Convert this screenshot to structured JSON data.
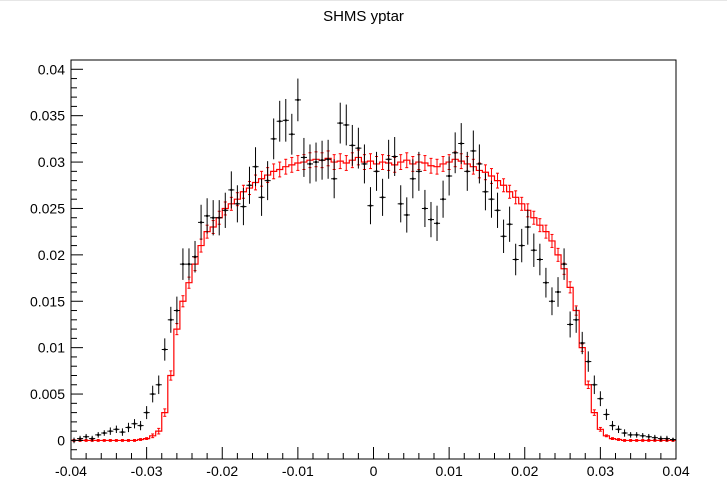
{
  "chart_data": {
    "type": "scatter",
    "title": "SHMS yptar",
    "xlabel": "",
    "ylabel": "",
    "xlim": [
      -0.04,
      0.04
    ],
    "ylim": [
      -0.002,
      0.041
    ],
    "grid": false,
    "legend": "none",
    "x_ticks": [
      "-0.04",
      "-0.03",
      "-0.02",
      "-0.01",
      "0",
      "0.01",
      "0.02",
      "0.03",
      "0.04"
    ],
    "y_ticks": [
      "0",
      "0.005",
      "0.01",
      "0.015",
      "0.02",
      "0.025",
      "0.03",
      "0.035",
      "0.04"
    ],
    "colors": {
      "data": "#000000",
      "simulation": "#ff0000",
      "frame": "#000000"
    },
    "bin_width": 0.0008,
    "series": [
      {
        "style": "points-with-error-bars",
        "color": "#000000",
        "x": [
          -0.0396,
          -0.0388,
          -0.038,
          -0.0372,
          -0.0364,
          -0.0356,
          -0.0348,
          -0.034,
          -0.0332,
          -0.0324,
          -0.0316,
          -0.0308,
          -0.03,
          -0.0292,
          -0.0284,
          -0.0276,
          -0.0268,
          -0.026,
          -0.0252,
          -0.0244,
          -0.0236,
          -0.0228,
          -0.022,
          -0.0212,
          -0.0204,
          -0.0196,
          -0.0188,
          -0.018,
          -0.0172,
          -0.0164,
          -0.0156,
          -0.0148,
          -0.014,
          -0.0132,
          -0.0124,
          -0.0116,
          -0.0108,
          -0.01,
          -0.0092,
          -0.0084,
          -0.0076,
          -0.0068,
          -0.006,
          -0.0052,
          -0.0044,
          -0.0036,
          -0.0028,
          -0.002,
          -0.0012,
          -0.0004,
          0.0004,
          0.0012,
          0.002,
          0.0028,
          0.0036,
          0.0044,
          0.0052,
          0.006,
          0.0068,
          0.0076,
          0.0084,
          0.0092,
          0.01,
          0.0108,
          0.0116,
          0.0124,
          0.0132,
          0.014,
          0.0148,
          0.0156,
          0.0164,
          0.0172,
          0.018,
          0.0188,
          0.0196,
          0.0204,
          0.0212,
          0.022,
          0.0228,
          0.0236,
          0.0244,
          0.0252,
          0.026,
          0.0268,
          0.0276,
          0.0284,
          0.0292,
          0.03,
          0.0308,
          0.0316,
          0.0324,
          0.0332,
          0.034,
          0.0348,
          0.0356,
          0.0364,
          0.0372,
          0.038,
          0.0388,
          0.0396
        ],
        "y": [
          0.0,
          0.0002,
          0.0004,
          0.0002,
          0.0006,
          0.0008,
          0.001,
          0.0012,
          0.0009,
          0.0014,
          0.0018,
          0.0016,
          0.003,
          0.005,
          0.006,
          0.0098,
          0.013,
          0.014,
          0.019,
          0.019,
          0.0198,
          0.0235,
          0.0242,
          0.024,
          0.024,
          0.0248,
          0.027,
          0.0255,
          0.0252,
          0.0275,
          0.0295,
          0.0262,
          0.028,
          0.0325,
          0.0344,
          0.0345,
          0.033,
          0.0367,
          0.0305,
          0.0298,
          0.03,
          0.0302,
          0.0303,
          0.0282,
          0.0342,
          0.034,
          0.0318,
          0.0315,
          0.0298,
          0.0253,
          0.029,
          0.0262,
          0.0303,
          0.0306,
          0.0255,
          0.0243,
          0.0282,
          0.029,
          0.025,
          0.0238,
          0.0234,
          0.026,
          0.0285,
          0.031,
          0.032,
          0.029,
          0.0312,
          0.0298,
          0.0268,
          0.026,
          0.0248,
          0.022,
          0.0233,
          0.0195,
          0.021,
          0.023,
          0.0205,
          0.0195,
          0.017,
          0.015,
          0.016,
          0.019,
          0.0125,
          0.013,
          0.0105,
          0.0085,
          0.006,
          0.0045,
          0.0028,
          0.0016,
          0.0012,
          0.0008,
          0.0006,
          0.0006,
          0.0005,
          0.0004,
          0.0003,
          0.0002,
          0.0002,
          0.0001
        ],
        "err": [
          0.0003,
          0.0003,
          0.0003,
          0.0003,
          0.0003,
          0.0003,
          0.0004,
          0.0004,
          0.0004,
          0.0005,
          0.0005,
          0.0005,
          0.0007,
          0.0009,
          0.001,
          0.0012,
          0.0014,
          0.0015,
          0.0017,
          0.0017,
          0.0017,
          0.0019,
          0.0019,
          0.0019,
          0.0019,
          0.0019,
          0.002,
          0.002,
          0.002,
          0.002,
          0.0021,
          0.002,
          0.0021,
          0.0022,
          0.0022,
          0.0023,
          0.0022,
          0.0023,
          0.0021,
          0.0021,
          0.0021,
          0.0021,
          0.0021,
          0.0021,
          0.0022,
          0.0022,
          0.0022,
          0.0022,
          0.0021,
          0.002,
          0.0021,
          0.002,
          0.0021,
          0.0021,
          0.002,
          0.0019,
          0.0021,
          0.0021,
          0.002,
          0.0019,
          0.0019,
          0.002,
          0.0021,
          0.0022,
          0.0022,
          0.0021,
          0.0022,
          0.0021,
          0.002,
          0.002,
          0.0019,
          0.0018,
          0.0019,
          0.0017,
          0.0018,
          0.0019,
          0.0018,
          0.0017,
          0.0016,
          0.0015,
          0.0016,
          0.0017,
          0.0014,
          0.0014,
          0.0012,
          0.0011,
          0.001,
          0.0008,
          0.0006,
          0.0005,
          0.0004,
          0.0004,
          0.0003,
          0.0003,
          0.0003,
          0.0003,
          0.0003,
          0.0003,
          0.0003,
          0.0002
        ]
      },
      {
        "style": "step-histogram-with-error-bars",
        "color": "#ff0000",
        "x": [
          -0.0396,
          -0.0388,
          -0.038,
          -0.0372,
          -0.0364,
          -0.0356,
          -0.0348,
          -0.034,
          -0.0332,
          -0.0324,
          -0.0316,
          -0.0308,
          -0.03,
          -0.0292,
          -0.0284,
          -0.0276,
          -0.0268,
          -0.026,
          -0.0252,
          -0.0244,
          -0.0236,
          -0.0228,
          -0.022,
          -0.0212,
          -0.0204,
          -0.0196,
          -0.0188,
          -0.018,
          -0.0172,
          -0.0164,
          -0.0156,
          -0.0148,
          -0.014,
          -0.0132,
          -0.0124,
          -0.0116,
          -0.0108,
          -0.01,
          -0.0092,
          -0.0084,
          -0.0076,
          -0.0068,
          -0.006,
          -0.0052,
          -0.0044,
          -0.0036,
          -0.0028,
          -0.002,
          -0.0012,
          -0.0004,
          0.0004,
          0.0012,
          0.002,
          0.0028,
          0.0036,
          0.0044,
          0.0052,
          0.006,
          0.0068,
          0.0076,
          0.0084,
          0.0092,
          0.01,
          0.0108,
          0.0116,
          0.0124,
          0.0132,
          0.014,
          0.0148,
          0.0156,
          0.0164,
          0.0172,
          0.018,
          0.0188,
          0.0196,
          0.0204,
          0.0212,
          0.022,
          0.0228,
          0.0236,
          0.0244,
          0.0252,
          0.026,
          0.0268,
          0.0276,
          0.0284,
          0.0292,
          0.03,
          0.0308,
          0.0316,
          0.0324,
          0.0332,
          0.034,
          0.0348,
          0.0356,
          0.0364,
          0.0372,
          0.038,
          0.0388,
          0.0396
        ],
        "y": [
          0.0,
          0.0,
          0.0,
          0.0,
          0.0,
          0.0,
          0.0,
          0.0,
          0.0,
          0.0,
          0.0,
          0.0001,
          0.0002,
          0.0005,
          0.001,
          0.003,
          0.007,
          0.012,
          0.015,
          0.017,
          0.019,
          0.021,
          0.0225,
          0.023,
          0.024,
          0.025,
          0.0255,
          0.026,
          0.0268,
          0.0272,
          0.0278,
          0.0282,
          0.0286,
          0.029,
          0.0292,
          0.0295,
          0.0297,
          0.0299,
          0.03,
          0.0302,
          0.0303,
          0.0302,
          0.0304,
          0.03,
          0.0301,
          0.0299,
          0.0302,
          0.0305,
          0.03,
          0.0301,
          0.0298,
          0.03,
          0.0299,
          0.0297,
          0.03,
          0.0302,
          0.0298,
          0.03,
          0.0299,
          0.0296,
          0.0295,
          0.0298,
          0.03,
          0.0303,
          0.0301,
          0.0298,
          0.0295,
          0.0291,
          0.0289,
          0.0285,
          0.028,
          0.0275,
          0.0268,
          0.0262,
          0.0255,
          0.0248,
          0.024,
          0.0232,
          0.0225,
          0.0215,
          0.02,
          0.0185,
          0.0165,
          0.014,
          0.01,
          0.006,
          0.003,
          0.0012,
          0.0005,
          0.0002,
          0.0001,
          0.0,
          0.0,
          0.0,
          0.0,
          0.0,
          0.0,
          0.0,
          0.0,
          0.0
        ],
        "err": [
          0.0001,
          0.0001,
          0.0001,
          0.0001,
          0.0001,
          0.0001,
          0.0001,
          0.0001,
          0.0001,
          0.0001,
          0.0001,
          0.0001,
          0.0001,
          0.0002,
          0.0003,
          0.0004,
          0.0005,
          0.0006,
          0.0006,
          0.0006,
          0.0007,
          0.0007,
          0.0007,
          0.0007,
          0.0007,
          0.0007,
          0.0007,
          0.0007,
          0.0007,
          0.0007,
          0.0008,
          0.0008,
          0.0008,
          0.0008,
          0.0008,
          0.0008,
          0.0008,
          0.0008,
          0.0008,
          0.0008,
          0.0008,
          0.0008,
          0.0008,
          0.0008,
          0.0008,
          0.0008,
          0.0008,
          0.0008,
          0.0008,
          0.0008,
          0.0008,
          0.0008,
          0.0008,
          0.0008,
          0.0008,
          0.0008,
          0.0008,
          0.0008,
          0.0008,
          0.0008,
          0.0008,
          0.0008,
          0.0008,
          0.0008,
          0.0008,
          0.0008,
          0.0008,
          0.0008,
          0.0008,
          0.0008,
          0.0008,
          0.0007,
          0.0007,
          0.0007,
          0.0007,
          0.0007,
          0.0007,
          0.0007,
          0.0007,
          0.0007,
          0.0007,
          0.0006,
          0.0006,
          0.0005,
          0.0004,
          0.0004,
          0.0003,
          0.0002,
          0.0001,
          0.0001,
          0.0001,
          0.0001,
          0.0001,
          0.0001,
          0.0001,
          0.0001,
          0.0001,
          0.0001,
          0.0001,
          0.0001
        ]
      }
    ]
  }
}
